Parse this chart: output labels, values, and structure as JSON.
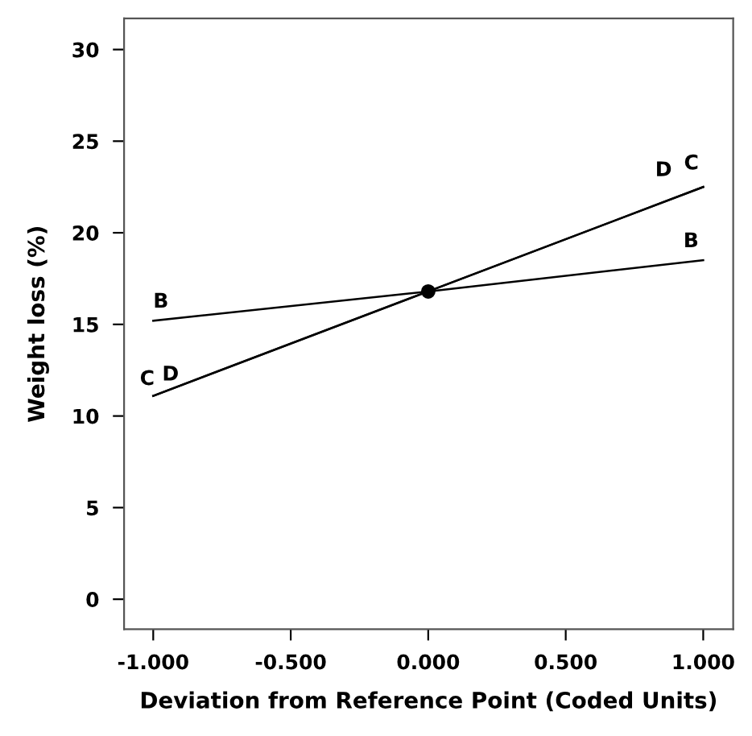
{
  "chart_data": {
    "type": "line",
    "xlabel": "Deviation from Reference Point (Coded Units)",
    "ylabel": "Weight loss (%)",
    "xlim": [
      -1.106,
      1.109
    ],
    "ylim": [
      -1.64,
      31.7
    ],
    "xticks": [
      {
        "value": -1,
        "label": "-1.000"
      },
      {
        "value": -0.5,
        "label": "-0.500"
      },
      {
        "value": 0,
        "label": "0.000"
      },
      {
        "value": 0.5,
        "label": "0.500"
      },
      {
        "value": 1,
        "label": "1.000"
      }
    ],
    "yticks": [
      0,
      5,
      10,
      15,
      20,
      25,
      30
    ],
    "grid": false,
    "legend": false,
    "series": [
      {
        "name": "B",
        "color": "#000000",
        "x": [
          -1,
          0,
          1
        ],
        "values": [
          15.2,
          16.8,
          18.5
        ]
      },
      {
        "name": "C",
        "color": "#000000",
        "x": [
          -1,
          0,
          1
        ],
        "values": [
          11.1,
          16.8,
          22.5
        ]
      },
      {
        "name": "D",
        "color": "#000000",
        "x": [
          -1,
          0,
          1
        ],
        "values": [
          11.1,
          16.8,
          22.5
        ]
      },
      {
        "type": "scatter",
        "marker": "circle",
        "color": "#000000",
        "x": [
          0
        ],
        "values": [
          16.8
        ]
      }
    ]
  }
}
